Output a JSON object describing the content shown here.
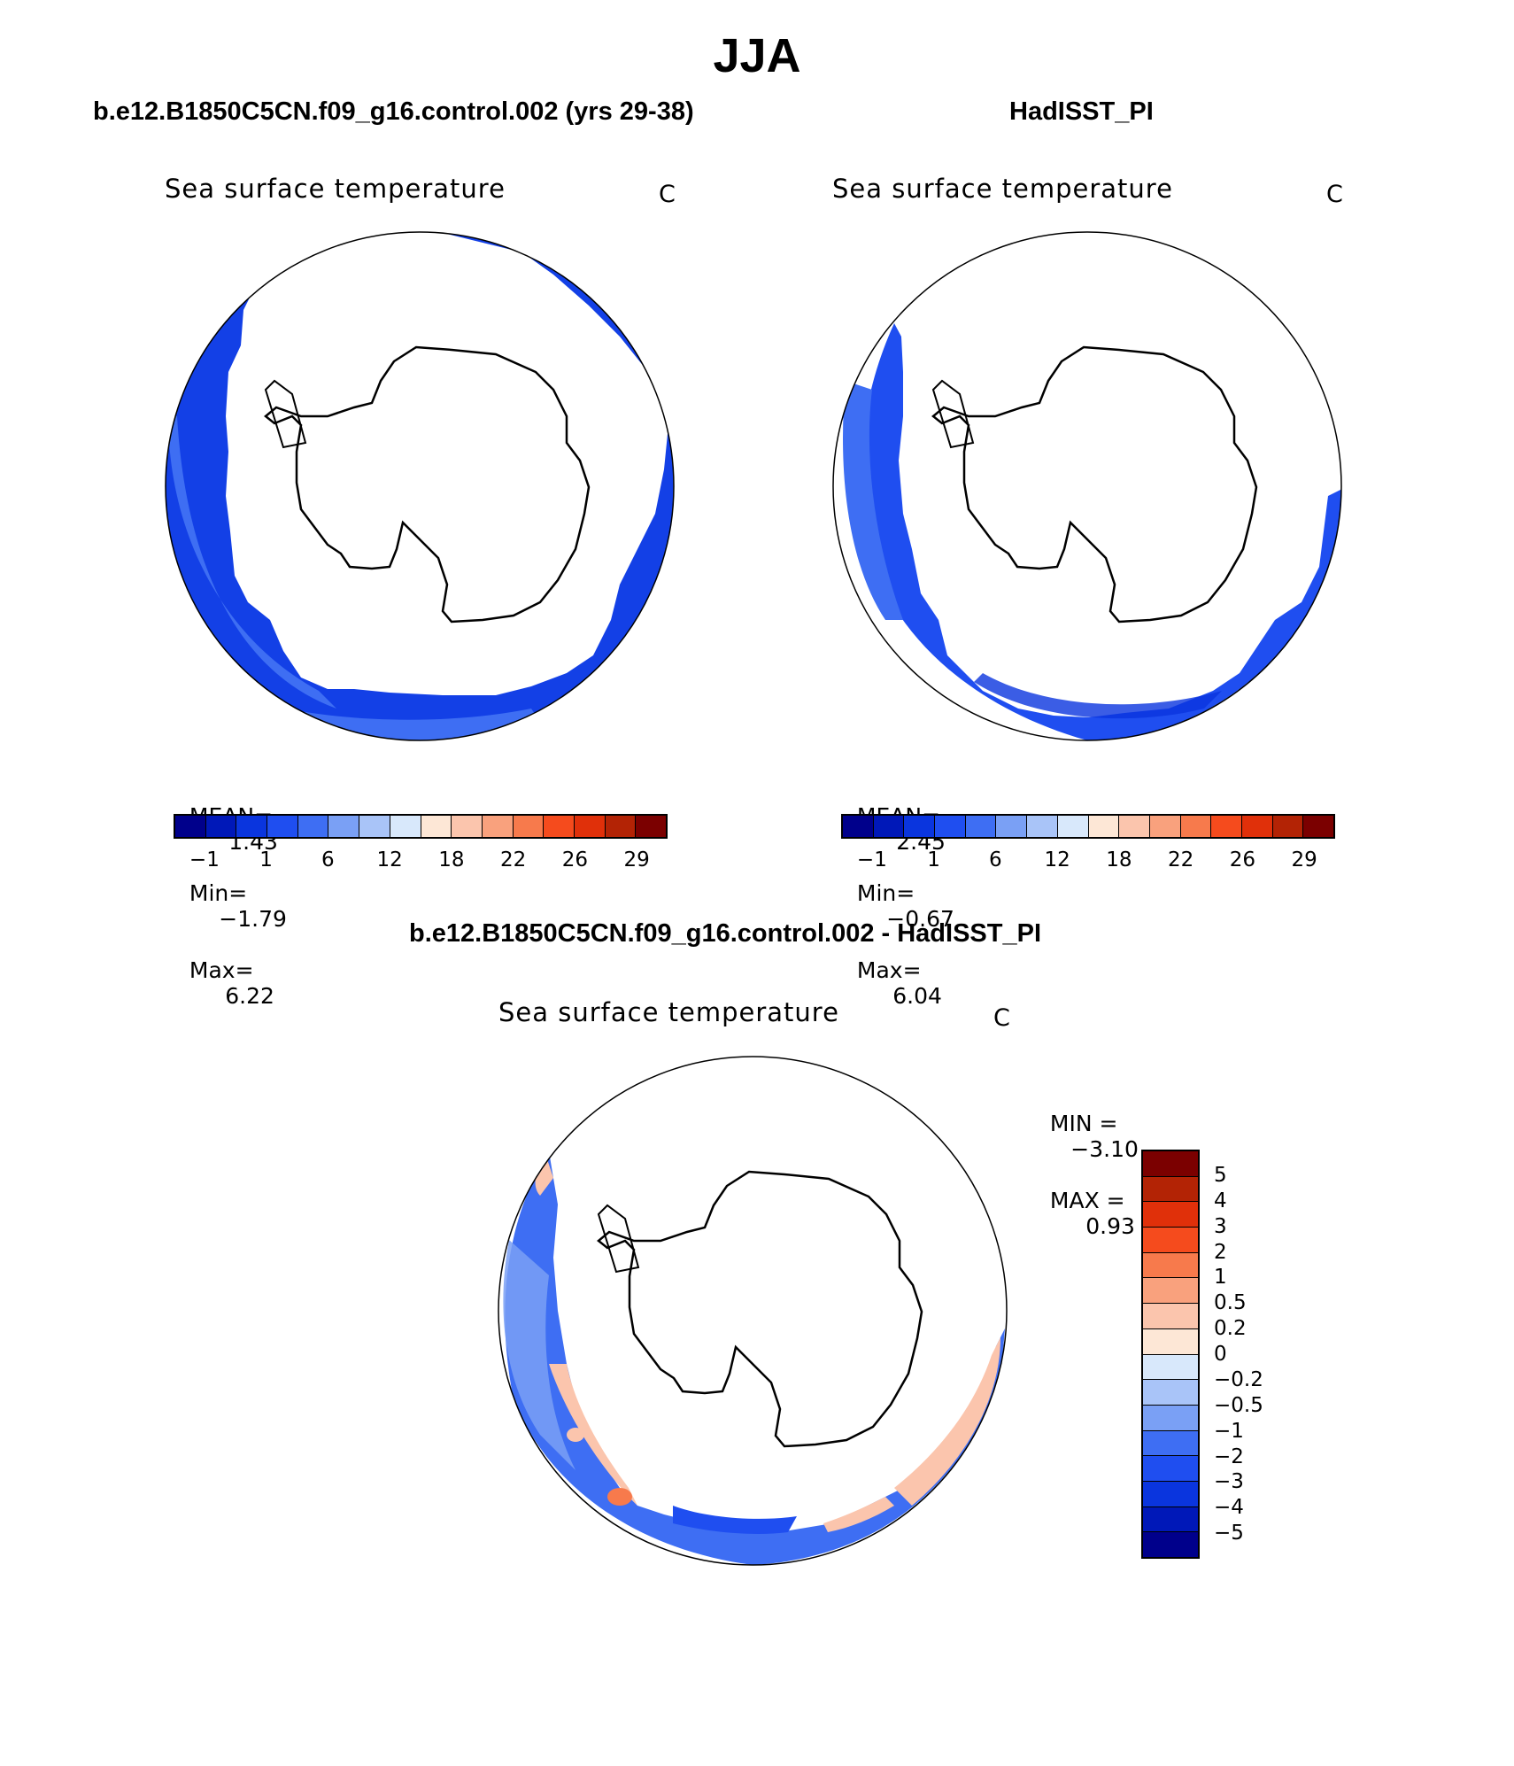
{
  "season": "JJA",
  "panels": [
    {
      "subtitle": "b.e12.B1850C5CN.f09_g16.control.002 (yrs 29-38)",
      "map_title": "Sea surface temperature",
      "units": "C",
      "stats": {
        "mean_label": "MEAN=",
        "mean": "1.43",
        "min_label": "Min=",
        "min": "−1.79",
        "max_label": "Max=",
        "max": "6.22"
      }
    },
    {
      "subtitle": "HadISST_PI",
      "map_title": "Sea surface temperature",
      "units": "C",
      "stats": {
        "mean_label": "MEAN=",
        "mean": "2.45",
        "min_label": "Min=",
        "min": "−0.67",
        "max_label": "Max=",
        "max": "6.04"
      }
    }
  ],
  "top_colorbar": {
    "colors": [
      "#00008b",
      "#0018b8",
      "#0a35de",
      "#1f4ef0",
      "#3e6ef3",
      "#7aa0f5",
      "#a9c4f8",
      "#d8e8fb",
      "#fde7d6",
      "#fbc5ad",
      "#f9a17d",
      "#f77a4c",
      "#f54b1d",
      "#e0300a",
      "#b32305",
      "#7b0000"
    ],
    "tick_labels": [
      "−1",
      "1",
      "6",
      "12",
      "18",
      "22",
      "26",
      "29"
    ],
    "tick_boundaries": [
      1,
      3,
      5,
      7,
      9,
      11,
      13,
      15
    ]
  },
  "diff_panel": {
    "subtitle": "b.e12.B1850C5CN.f09_g16.control.002 - HadISST_PI",
    "map_title": "Sea surface temperature",
    "units": "C",
    "stats": {
      "min_label": "MIN =",
      "min": "−3.10",
      "max_label": "MAX =",
      "max": "0.93"
    }
  },
  "diff_colorbar": {
    "colors_top_to_bottom": [
      "#7b0000",
      "#b32305",
      "#e0300a",
      "#f54b1d",
      "#f77a4c",
      "#f9a17d",
      "#fbc5ad",
      "#fde7d6",
      "#d8e8fb",
      "#a9c4f8",
      "#7aa0f5",
      "#3e6ef3",
      "#1f4ef0",
      "#0a35de",
      "#0018b8",
      "#00008b"
    ],
    "tick_labels": [
      "5",
      "4",
      "3",
      "2",
      "1",
      "0.5",
      "0.2",
      "0",
      "−0.2",
      "−0.5",
      "−1",
      "−2",
      "−3",
      "−4",
      "−5"
    ]
  },
  "colors": {
    "ice_fill": "#ffffff",
    "sst_dark": "#0a35de",
    "sst_mid": "#1f4ef0",
    "sst_light": "#3e6ef3",
    "diff_blue": "#3e6ef3",
    "diff_lightblue": "#7aa0f5",
    "diff_orange": "#fbc5ad"
  }
}
